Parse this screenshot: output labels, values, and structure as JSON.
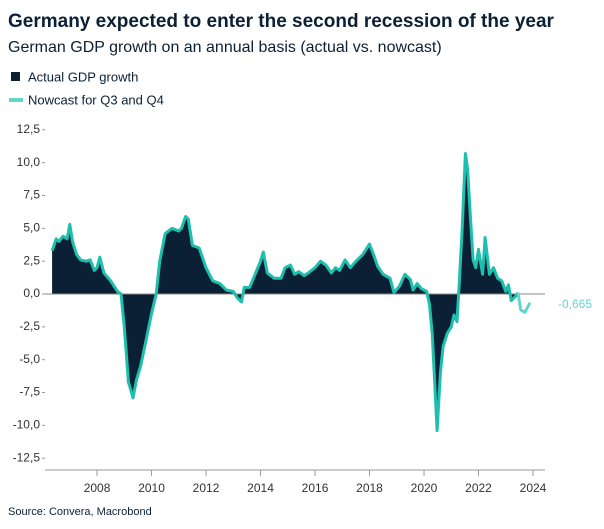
{
  "chart_data": {
    "type": "area",
    "title": "Germany expected to enter the second recession of the year",
    "subtitle": "German GDP growth on an annual basis (actual vs. nowcast)",
    "source": "Source: Convera, Macrobond",
    "xlim": [
      2006.09,
      2024.44
    ],
    "xticks": [
      2008,
      2010,
      2012,
      2014,
      2016,
      2018,
      2020,
      2022,
      2024
    ],
    "ylim": [
      -13.4,
      13.4
    ],
    "yticks": [
      {
        "value": 12.5,
        "label": "12,5"
      },
      {
        "value": 10,
        "label": "10,0"
      },
      {
        "value": 7.5,
        "label": "7,5"
      },
      {
        "value": 5,
        "label": "5,0"
      },
      {
        "value": 2.5,
        "label": "2,5"
      },
      {
        "value": 0,
        "label": "0,0"
      },
      {
        "value": -2.5,
        "label": "-2,5"
      },
      {
        "value": -5,
        "label": "-5,0"
      },
      {
        "value": -7.5,
        "label": "-7,5"
      },
      {
        "value": -10,
        "label": "-10,0"
      },
      {
        "value": -12.5,
        "label": "-12,5"
      }
    ],
    "series": [
      {
        "name": "Actual GDP growth",
        "color": "#0b2035",
        "line_color": "#1dbfae",
        "x": [
          2006.35,
          2006.5,
          2006.6,
          2006.75,
          2006.9,
          2007.0,
          2007.1,
          2007.25,
          2007.4,
          2007.6,
          2007.75,
          2007.9,
          2008.0,
          2008.1,
          2008.25,
          2008.5,
          2008.75,
          2008.88,
          2009.0,
          2009.15,
          2009.32,
          2009.45,
          2009.6,
          2009.8,
          2010.0,
          2010.17,
          2010.3,
          2010.5,
          2010.75,
          2011.0,
          2011.1,
          2011.25,
          2011.35,
          2011.5,
          2011.75,
          2012.0,
          2012.25,
          2012.5,
          2012.75,
          2013.0,
          2013.15,
          2013.3,
          2013.4,
          2013.6,
          2013.8,
          2014.0,
          2014.1,
          2014.25,
          2014.5,
          2014.75,
          2014.9,
          2015.1,
          2015.25,
          2015.4,
          2015.6,
          2015.75,
          2016.0,
          2016.2,
          2016.4,
          2016.6,
          2016.75,
          2016.9,
          2017.1,
          2017.3,
          2017.5,
          2017.75,
          2018.0,
          2018.15,
          2018.3,
          2018.5,
          2018.75,
          2018.9,
          2019.1,
          2019.3,
          2019.5,
          2019.6,
          2019.75,
          2019.9,
          2020.1,
          2020.2,
          2020.3,
          2020.48,
          2020.6,
          2020.7,
          2020.85,
          2021.0,
          2021.1,
          2021.21,
          2021.3,
          2021.4,
          2021.52,
          2021.6,
          2021.7,
          2021.8,
          2021.9,
          2022.0,
          2022.15,
          2022.24,
          2022.4,
          2022.55,
          2022.7,
          2022.85,
          2023.0,
          2023.1,
          2023.2,
          2023.35,
          2023.45
        ],
        "values": [
          3.3,
          4.2,
          4.0,
          4.4,
          4.2,
          5.3,
          4.0,
          3.0,
          2.6,
          2.5,
          2.6,
          1.8,
          2.0,
          2.8,
          1.6,
          1.0,
          0.2,
          0.0,
          -2.5,
          -6.7,
          -7.9,
          -6.5,
          -5.5,
          -3.5,
          -1.5,
          0.0,
          2.5,
          4.6,
          5.0,
          4.8,
          5.0,
          5.9,
          5.7,
          3.7,
          3.5,
          2.0,
          1.0,
          0.8,
          0.3,
          0.2,
          -0.3,
          -0.6,
          0.5,
          0.5,
          1.5,
          2.5,
          3.2,
          1.6,
          1.2,
          1.2,
          2.0,
          2.2,
          1.5,
          1.7,
          1.4,
          1.6,
          2.0,
          2.5,
          2.2,
          1.6,
          2.0,
          1.8,
          2.6,
          2.0,
          2.5,
          3.0,
          3.8,
          3.0,
          2.1,
          1.5,
          1.2,
          0.1,
          0.6,
          1.5,
          1.1,
          0.3,
          0.8,
          0.4,
          0.2,
          -0.8,
          -3.0,
          -10.4,
          -6.0,
          -4.0,
          -3.0,
          -2.5,
          -1.6,
          -2.1,
          1.0,
          5.0,
          10.7,
          9.5,
          6.0,
          2.6,
          2.0,
          3.4,
          1.5,
          4.3,
          1.5,
          2.0,
          1.2,
          1.0,
          0.2,
          0.7,
          -0.5,
          -0.2,
          0.1
        ]
      },
      {
        "name": "Nowcast for Q3 and Q4",
        "color": "#63d6cb",
        "x": [
          2023.45,
          2023.55,
          2023.7,
          2023.89
        ],
        "values": [
          0.1,
          -1.2,
          -1.4,
          -0.665
        ],
        "value_labels": [
          null,
          null,
          null,
          "-0,665"
        ]
      }
    ]
  }
}
